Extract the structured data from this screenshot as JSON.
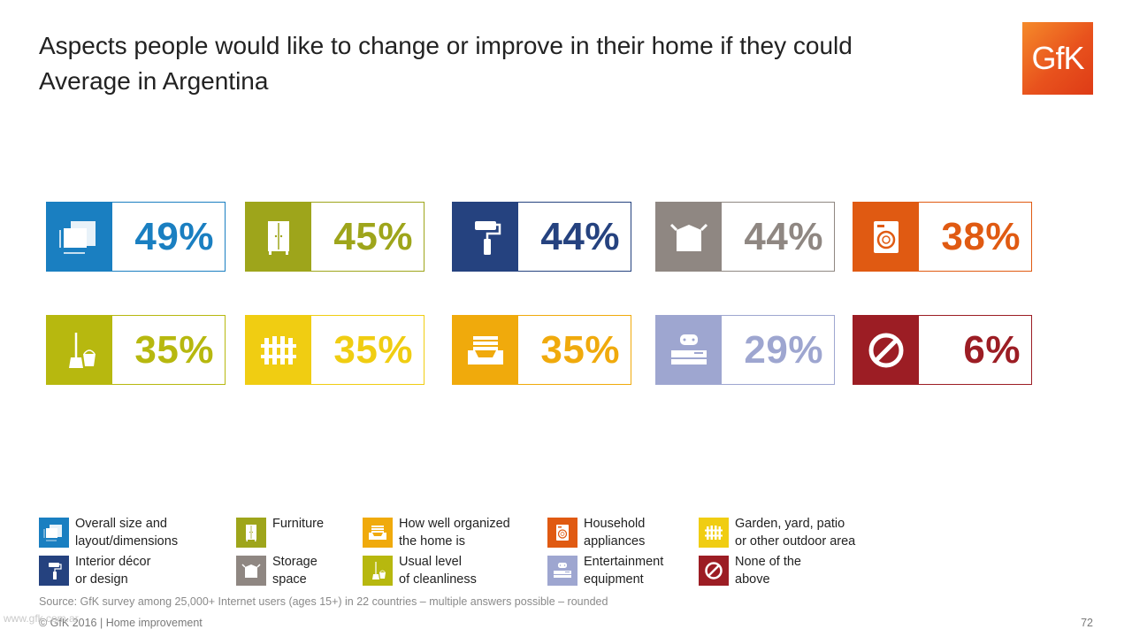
{
  "title": {
    "line1": "Aspects people would like to change or improve in their home if they could",
    "line2": "Average in Argentina"
  },
  "logo": {
    "text": "GfK"
  },
  "chart_data": {
    "type": "table",
    "values": [
      {
        "category": "Overall size and layout/dimensions",
        "value": 49,
        "label": "49%",
        "color": "#1a7fc1",
        "icon": "size-layout-icon"
      },
      {
        "category": "Furniture",
        "value": 45,
        "label": "45%",
        "color": "#9ea51b",
        "icon": "furniture-icon"
      },
      {
        "category": "Interior décor or design",
        "value": 44,
        "label": "44%",
        "color": "#25427f",
        "icon": "paint-roller-icon"
      },
      {
        "category": "Storage space",
        "value": 44,
        "label": "44%",
        "color": "#8f8782",
        "icon": "box-icon"
      },
      {
        "category": "Household appliances",
        "value": 38,
        "label": "38%",
        "color": "#e05a12",
        "icon": "washing-machine-icon"
      },
      {
        "category": "Usual level of cleanliness",
        "value": 35,
        "label": "35%",
        "color": "#b7b80f",
        "icon": "broom-bucket-icon"
      },
      {
        "category": "Garden, yard, patio or other outdoor area",
        "value": 35,
        "label": "35%",
        "color": "#f0cd12",
        "icon": "fence-icon"
      },
      {
        "category": "How well organized the home is",
        "value": 35,
        "label": "35%",
        "color": "#f0aa0c",
        "icon": "tray-icon"
      },
      {
        "category": "Entertainment equipment",
        "value": 29,
        "label": "29%",
        "color": "#9ea6d0",
        "icon": "game-console-icon"
      },
      {
        "category": "None of the above",
        "value": 6,
        "label": "6%",
        "color": "#9c1d24",
        "icon": "prohibited-icon"
      }
    ]
  },
  "legend": [
    {
      "text": "Overall size and\nlayout/dimensions",
      "color": "#1a7fc1",
      "icon": "size-layout-icon"
    },
    {
      "text": "Furniture",
      "color": "#9ea51b",
      "icon": "furniture-icon"
    },
    {
      "text": "How well organized\nthe home is",
      "color": "#f0aa0c",
      "icon": "tray-icon"
    },
    {
      "text": "Household\nappliances",
      "color": "#e05a12",
      "icon": "washing-machine-icon"
    },
    {
      "text": "Garden, yard, patio\nor other outdoor area",
      "color": "#f0cd12",
      "icon": "fence-icon"
    },
    {
      "text": "Interior décor\nor design",
      "color": "#25427f",
      "icon": "paint-roller-icon"
    },
    {
      "text": "Storage\nspace",
      "color": "#8f8782",
      "icon": "box-icon"
    },
    {
      "text": "Usual level\nof cleanliness",
      "color": "#b7b80f",
      "icon": "broom-bucket-icon"
    },
    {
      "text": "Entertainment\nequipment",
      "color": "#9ea6d0",
      "icon": "game-console-icon"
    },
    {
      "text": "None of the\nabove",
      "color": "#9c1d24",
      "icon": "prohibited-icon"
    }
  ],
  "source": "Source: GfK survey among 25,000+ Internet users (ages 15+) in 22 countries – multiple answers possible – rounded",
  "footer": "© GfK 2016 | Home improvement",
  "page_number": "72",
  "watermark": "www.gfk.com.ar"
}
